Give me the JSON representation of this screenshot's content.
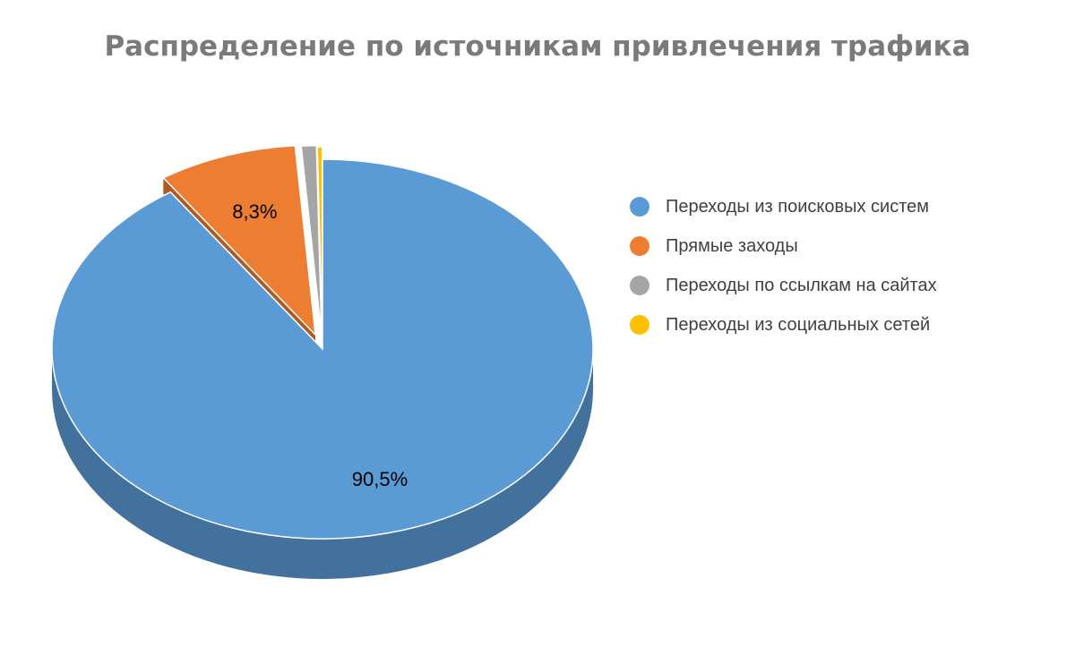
{
  "chart_data": {
    "type": "pie",
    "title": "Распределение по источникам привлечения трафика",
    "legend_position": "right",
    "slices": [
      {
        "name": "Переходы из поисковых систем",
        "value": 90.5,
        "label": "90,5%",
        "color": "#5b9bd5",
        "side_color": "#41719c"
      },
      {
        "name": "Прямые заходы",
        "value": 8.3,
        "label": "8,3%",
        "color": "#ed7d31",
        "side_color": "#ae5a21"
      },
      {
        "name": "Переходы по ссылкам на сайтах",
        "value": 0.9,
        "label": "",
        "color": "#a5a5a5",
        "side_color": "#787878"
      },
      {
        "name": "Переходы из социальных сетей",
        "value": 0.3,
        "label": "",
        "color": "#ffc000",
        "side_color": "#bc8c00"
      }
    ]
  }
}
